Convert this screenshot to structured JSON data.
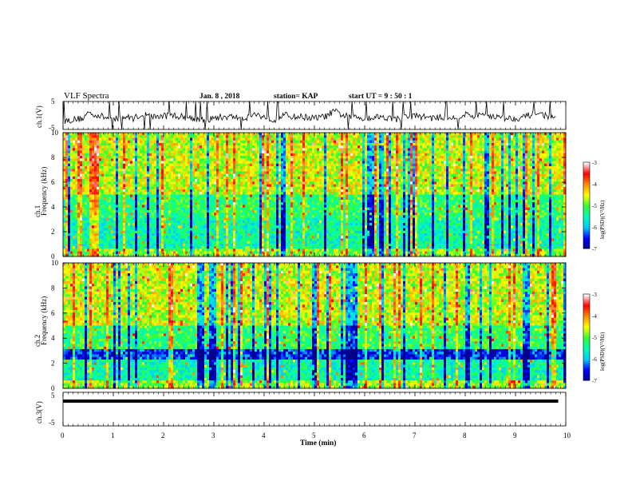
{
  "header": {
    "title": "VLF Spectra",
    "date": "Jan. 8 , 2018",
    "station": "station= KAP",
    "start": "start UT = 9 : 50 : 1"
  },
  "chart_data": [
    {
      "type": "line",
      "panel": "ch1-waveform",
      "ylabel": "ch.1(V)",
      "ylim": [
        -5,
        5
      ],
      "yticks": [
        "5",
        "-5"
      ],
      "xlim": [
        0,
        10
      ],
      "series": [
        {
          "x": [
            0,
            0.2,
            0.4,
            0.5,
            0.6,
            0.8,
            1.0,
            1.2,
            1.4,
            1.6,
            1.8,
            2.0,
            2.2,
            2.4,
            2.6,
            2.8,
            3.0,
            3.2,
            3.4,
            3.6,
            3.8,
            4.0,
            4.2,
            4.4,
            4.6,
            4.8,
            5.0,
            5.2,
            5.4,
            5.6,
            5.8,
            6.0,
            6.2,
            6.4,
            6.6,
            6.8,
            7.0,
            7.2,
            7.4,
            7.6,
            7.8,
            8.0,
            8.2,
            8.4,
            8.6,
            8.8,
            9.0,
            9.2,
            9.4,
            9.6,
            9.8
          ],
          "values": [
            -2.0,
            -1.5,
            -1.0,
            1.0,
            0.5,
            -0.5,
            -1.5,
            -0.5,
            -1.0,
            0.5,
            -0.5,
            -0.2,
            0.0,
            -0.5,
            -1.0,
            -2.0,
            -1.0,
            -0.5,
            -0.5,
            -1.0,
            0.5,
            -0.5,
            -1.5,
            0.2,
            -0.5,
            -0.5,
            -1.0,
            -0.5,
            1.5,
            -0.2,
            -0.5,
            -1.0,
            -0.5,
            -0.5,
            -1.5,
            -0.5,
            -0.2,
            -0.5,
            -1.0,
            -0.5,
            -1.0,
            0.5,
            -0.5,
            0.5,
            -0.5,
            -1.0,
            -1.0,
            -0.5,
            1.0,
            0.0,
            -1.5
          ]
        }
      ]
    },
    {
      "type": "heatmap",
      "panel": "ch1-spectrogram",
      "ylabel": "ch.1 Frequency (kHz)",
      "yticks": [
        "0",
        "2",
        "4",
        "6",
        "8",
        "10"
      ],
      "ylim": [
        0,
        10
      ],
      "xlim": [
        0,
        10
      ],
      "colorbar": {
        "label": "log(PSD)(V²/Hz)",
        "ticks": [
          "-3",
          "-4",
          "-5",
          "-6",
          "-7"
        ],
        "range": [
          -7,
          -3
        ]
      }
    },
    {
      "type": "heatmap",
      "panel": "ch2-spectrogram",
      "ylabel": "ch.2 Frequency (kHz)",
      "yticks": [
        "0",
        "2",
        "4",
        "6",
        "8",
        "10"
      ],
      "ylim": [
        0,
        10
      ],
      "xlim": [
        0,
        10
      ],
      "colorbar": {
        "label": "log(PSD)(V²/Hz)",
        "ticks": [
          "-3",
          "-4",
          "-5",
          "-6",
          "-7"
        ],
        "range": [
          -7,
          -3
        ]
      }
    },
    {
      "type": "line",
      "panel": "ch3-waveform",
      "ylabel": "ch.3(V)",
      "ylim": [
        -5,
        5
      ],
      "yticks": [
        "5",
        "-5"
      ],
      "xlim": [
        0,
        10
      ],
      "series": [
        {
          "x": [
            0,
            10
          ],
          "values": [
            0,
            0
          ]
        }
      ]
    }
  ],
  "xaxis": {
    "label": "Time (min)",
    "ticks": [
      "0",
      "1",
      "2",
      "3",
      "4",
      "5",
      "6",
      "7",
      "8",
      "9",
      "10"
    ]
  },
  "colors": {
    "axis": "#000000",
    "colormap": [
      "#00008b",
      "#0000ff",
      "#00c8ff",
      "#00ffb4",
      "#33ff33",
      "#ffff00",
      "#ff8c00",
      "#ff0000",
      "#ffffff"
    ]
  }
}
